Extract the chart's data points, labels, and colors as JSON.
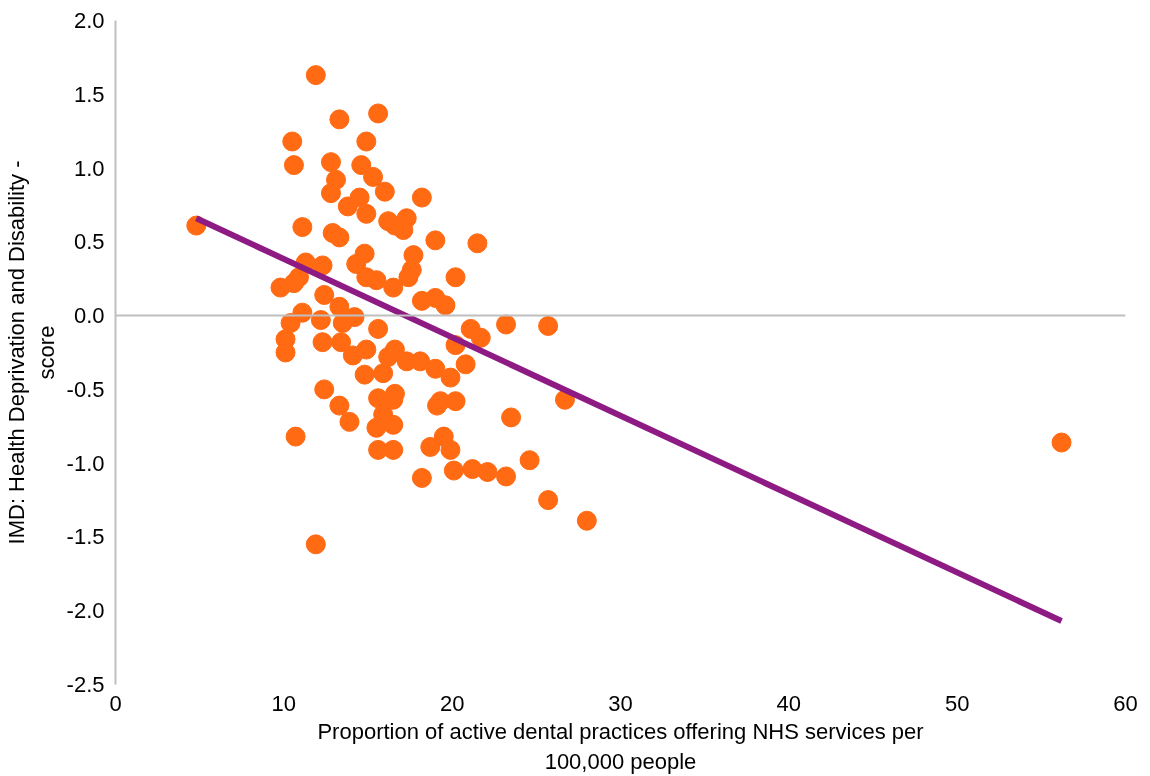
{
  "chart_data": {
    "type": "scatter",
    "xlabel": "Proportion of active dental practices offering NHS services per 100,000 people",
    "ylabel": "IMD: Health Deprivation and Disability - score",
    "xlim": [
      0,
      60
    ],
    "xticks": [
      0,
      10,
      20,
      30,
      40,
      50,
      60
    ],
    "ylim": [
      -2.5,
      2.0
    ],
    "yticks": [
      {
        "value": -2.5,
        "label": "-2.5"
      },
      {
        "value": -2.0,
        "label": "-2.0"
      },
      {
        "value": -1.5,
        "label": "-1.5"
      },
      {
        "value": -1.0,
        "label": "-1.0"
      },
      {
        "value": -0.5,
        "label": "-0.5"
      },
      {
        "value": 0,
        "label": "0.0"
      },
      {
        "value": 0.5,
        "label": "0.5"
      },
      {
        "value": 1.0,
        "label": "1.0"
      },
      {
        "value": 1.5,
        "label": "1.5"
      },
      {
        "value": 2.0,
        "label": "2.0"
      }
    ],
    "grid": false,
    "ref_lines": [
      {
        "axis": "y",
        "value": 0,
        "color": "#bfbfbf"
      }
    ],
    "series": [
      {
        "marker": "circle",
        "color": "#ff6a13",
        "x": [
          4.8,
          11.9,
          10.5,
          10.6,
          13.3,
          15.6,
          14.9,
          12.8,
          14.6,
          15.3,
          13.1,
          12.8,
          16.0,
          18.2,
          13.8,
          14.5,
          14.9,
          11.1,
          12.9,
          16.2,
          16.6,
          17.1,
          17.3,
          19.0,
          21.5,
          13.3,
          14.8,
          14.3,
          11.3,
          17.7,
          17.6,
          17.4,
          20.2,
          9.8,
          10.6,
          10.9,
          12.3,
          12.4,
          14.9,
          15.5,
          16.5,
          18.2,
          19.0,
          19.6,
          10.4,
          11.1,
          10.1,
          10.1,
          12.2,
          13.3,
          13.5,
          14.2,
          12.3,
          13.4,
          14.1,
          14.9,
          15.6,
          16.2,
          16.6,
          17.3,
          18.1,
          20.2,
          21.1,
          21.7,
          23.2,
          25.7,
          19.0,
          19.9,
          20.8,
          14.8,
          15.9,
          16.6,
          12.4,
          13.3,
          13.9,
          15.6,
          15.9,
          16.5,
          15.5,
          16.5,
          19.1,
          19.3,
          20.2,
          23.5,
          26.7,
          10.7,
          15.6,
          16.5,
          18.7,
          19.5,
          19.9,
          20.1,
          18.2,
          21.2,
          22.1,
          23.2,
          24.6,
          25.7,
          28.0,
          11.9,
          56.2
        ],
        "values": [
          0.61,
          1.63,
          1.18,
          1.02,
          1.33,
          1.37,
          1.18,
          1.04,
          1.02,
          0.94,
          0.92,
          0.83,
          0.84,
          0.8,
          0.74,
          0.8,
          0.69,
          0.6,
          0.56,
          0.64,
          0.61,
          0.58,
          0.66,
          0.51,
          0.49,
          0.53,
          0.42,
          0.35,
          0.36,
          0.41,
          0.31,
          0.26,
          0.26,
          0.19,
          0.22,
          0.26,
          0.34,
          0.14,
          0.26,
          0.24,
          0.19,
          0.1,
          0.12,
          0.07,
          -0.05,
          0.02,
          -0.16,
          -0.25,
          -0.03,
          0.06,
          -0.05,
          -0.01,
          -0.18,
          -0.18,
          -0.27,
          -0.23,
          -0.09,
          -0.28,
          -0.23,
          -0.31,
          -0.31,
          -0.2,
          -0.09,
          -0.15,
          -0.06,
          -0.07,
          -0.36,
          -0.42,
          -0.33,
          -0.4,
          -0.39,
          -0.53,
          -0.5,
          -0.61,
          -0.72,
          -0.56,
          -0.67,
          -0.57,
          -0.76,
          -0.74,
          -0.61,
          -0.58,
          -0.58,
          -0.69,
          -0.57,
          -0.82,
          -0.91,
          -0.91,
          -0.89,
          -0.82,
          -0.91,
          -1.05,
          -1.1,
          -1.04,
          -1.06,
          -1.09,
          -0.98,
          -1.25,
          -1.39,
          -1.55,
          -0.86
        ]
      },
      {
        "type": "line",
        "color": "#8e1a84",
        "x": [
          4.8,
          56.2
        ],
        "values": [
          0.66,
          -2.07
        ]
      }
    ]
  }
}
